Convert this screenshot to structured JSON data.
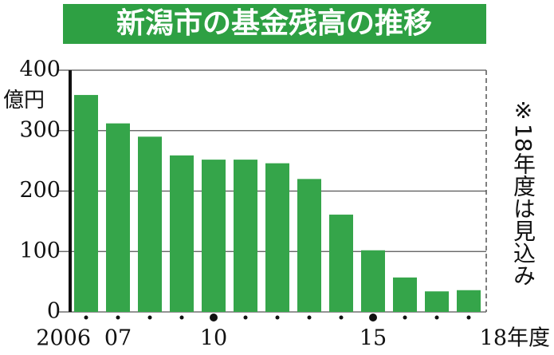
{
  "chart_data": {
    "type": "bar",
    "title": "新潟市の基金残高の推移",
    "y_label": "億円",
    "note": "※18年度は見込み",
    "categories": [
      "2006",
      "07",
      null,
      null,
      "10",
      null,
      null,
      null,
      null,
      "15",
      null,
      null,
      "18年度"
    ],
    "values": [
      359,
      312,
      290,
      259,
      252,
      252,
      246,
      220,
      161,
      102,
      57,
      34,
      36
    ],
    "color": "#35a54a",
    "ylim": [
      0,
      400
    ],
    "yticks": [
      0,
      100,
      200,
      300,
      400
    ],
    "grid": true
  }
}
